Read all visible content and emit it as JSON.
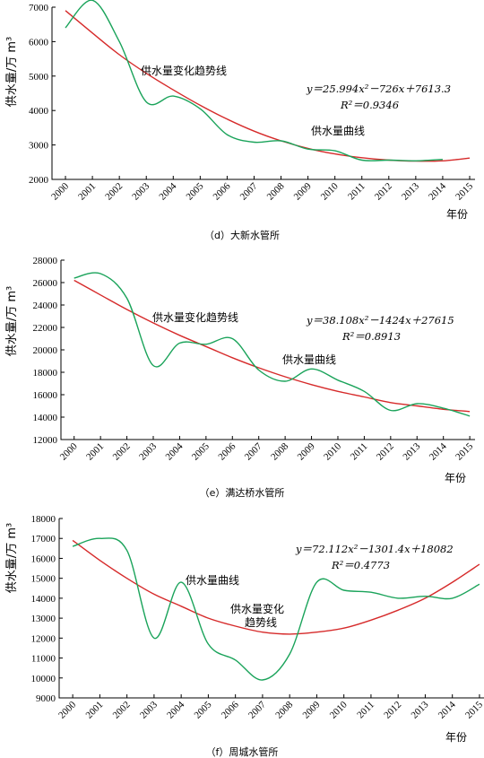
{
  "chart_data": [
    {
      "type": "line",
      "caption": "（d）大新水管所",
      "ylabel": "供水量/万 m³",
      "xlabel": "年份",
      "x": [
        "2000",
        "2001",
        "2002",
        "2003",
        "2004",
        "2005",
        "2006",
        "2007",
        "2008",
        "2009",
        "2010",
        "2011",
        "2012",
        "2013",
        "2014",
        "2015"
      ],
      "ylim": [
        2000,
        7000
      ],
      "yticks": [
        2000,
        3000,
        4000,
        5000,
        6000,
        7000
      ],
      "series": [
        {
          "label": "供水量曲线",
          "color": "#1aa35a",
          "values": [
            6400,
            7200,
            6000,
            4250,
            4420,
            4050,
            3300,
            3080,
            3120,
            2880,
            2830,
            2560,
            2560,
            2540,
            2580,
            null
          ],
          "ends": [
            6400,
            2580
          ]
        },
        {
          "label": "供水量变化趋势线",
          "color": "#d62a2a",
          "values": [
            6900,
            6250,
            5620,
            5080,
            4600,
            4150,
            3750,
            3400,
            3120,
            2900,
            2740,
            2630,
            2560,
            2530,
            2540,
            2620
          ]
        }
      ],
      "equation": "y＝25.994x²－726x＋7613.3",
      "r2": "R²＝0.9346"
    },
    {
      "type": "line",
      "caption": "（e）满达桥水管所",
      "ylabel": "供水量/万 m³",
      "xlabel": "年份",
      "x": [
        "2000",
        "2001",
        "2002",
        "2003",
        "2004",
        "2005",
        "2006",
        "2007",
        "2008",
        "2009",
        "2010",
        "2011",
        "2012",
        "2013",
        "2014",
        "2015"
      ],
      "ylim": [
        12000,
        28000
      ],
      "yticks": [
        12000,
        14000,
        16000,
        18000,
        20000,
        22000,
        24000,
        26000,
        28000
      ],
      "series": [
        {
          "label": "供水量曲线",
          "color": "#1aa35a",
          "values": [
            26400,
            26800,
            24600,
            18600,
            20600,
            20500,
            21000,
            18200,
            17200,
            18300,
            17300,
            16300,
            14600,
            15200,
            14800,
            14100
          ],
          "ends": [
            26400,
            14100
          ]
        },
        {
          "label": "供水量变化趋势线",
          "color": "#d62a2a",
          "values": [
            26200,
            24900,
            23600,
            22400,
            21300,
            20300,
            19300,
            18400,
            17600,
            16900,
            16300,
            15800,
            15300,
            15000,
            14700,
            14500
          ]
        }
      ],
      "equation": "y＝38.108x²－1424x＋27615",
      "r2": "R²＝0.8913"
    },
    {
      "type": "line",
      "caption": "（f）周城水管所",
      "ylabel": "供水量/万 m³",
      "xlabel": "年份",
      "x": [
        "2000",
        "2001",
        "2002",
        "2003",
        "2004",
        "2005",
        "2006",
        "2007",
        "2008",
        "2009",
        "2010",
        "2011",
        "2012",
        "2013",
        "2014",
        "2015"
      ],
      "ylim": [
        9000,
        18000
      ],
      "yticks": [
        9000,
        10000,
        11000,
        12000,
        13000,
        14000,
        15000,
        16000,
        17000,
        18000
      ],
      "series": [
        {
          "label": "供水量曲线",
          "color": "#1aa35a",
          "values": [
            16600,
            17000,
            16400,
            12000,
            14800,
            11700,
            10900,
            9900,
            11200,
            14800,
            14400,
            14300,
            14000,
            14100,
            14000,
            14700
          ],
          "ends": [
            16600,
            14700
          ]
        },
        {
          "label": "供水量变化趋势线",
          "color": "#d62a2a",
          "values": [
            16900,
            15900,
            15000,
            14200,
            13600,
            13000,
            12600,
            12300,
            12200,
            12300,
            12500,
            12900,
            13400,
            14000,
            14800,
            15700
          ]
        }
      ],
      "equation": "y＝72.112x²－1301.4x＋18082",
      "r2": "R²＝0.4773"
    }
  ],
  "annotations": [
    {
      "chart": 0,
      "text": "供水量变化趋势线"
    },
    {
      "chart": 0,
      "text": "供水量曲线"
    },
    {
      "chart": 1,
      "text": "供水量变化趋势线"
    },
    {
      "chart": 1,
      "text": "供水量曲线"
    },
    {
      "chart": 2,
      "text": "供水量曲线"
    },
    {
      "chart": 2,
      "text": "供水量变化"
    },
    {
      "chart": 2,
      "text": "趋势线"
    }
  ]
}
